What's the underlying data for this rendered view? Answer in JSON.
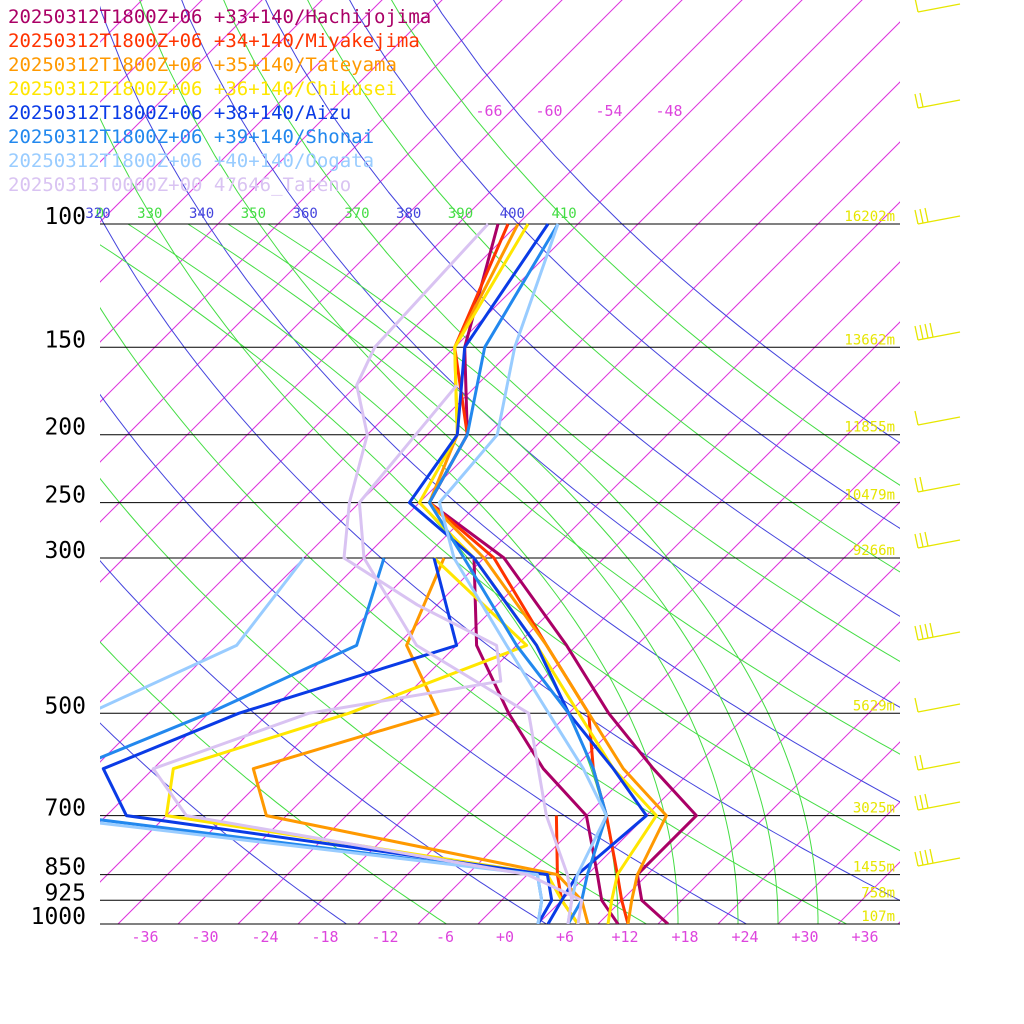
{
  "chart_data": {
    "type": "line",
    "chart_kind": "skew-T log-P sounding diagram",
    "legend_placement": "top-left",
    "grid": true,
    "xaxis": {
      "unit": "degC",
      "tick_labels": [
        "-36",
        "-30",
        "-24",
        "-18",
        "-12",
        "-6",
        "+0",
        "+6",
        "+12",
        "+18",
        "+24",
        "+30",
        "+36"
      ],
      "range": [
        -40,
        40
      ]
    },
    "yaxis": {
      "scale": "log",
      "unit": "hPa",
      "tick_labels": [
        "100",
        "150",
        "200",
        "250",
        "300",
        "500",
        "700",
        "850",
        "925",
        "1000"
      ],
      "range": [
        100,
        1000
      ]
    },
    "upper_temperature_labels": [
      "-66",
      "-60",
      "-54",
      "-48"
    ],
    "theta_labels": [
      "0",
      "320",
      "330",
      "340",
      "350",
      "360",
      "370",
      "380",
      "390",
      "400",
      "410"
    ],
    "height_labels": [
      {
        "p": 100,
        "text": "16202m"
      },
      {
        "p": 150,
        "text": "13662m"
      },
      {
        "p": 200,
        "text": "11855m"
      },
      {
        "p": 250,
        "text": "10479m"
      },
      {
        "p": 300,
        "text": "9266m"
      },
      {
        "p": 500,
        "text": "5629m"
      },
      {
        "p": 700,
        "text": "3025m"
      },
      {
        "p": 850,
        "text": "1455m"
      },
      {
        "p": 925,
        "text": "758m"
      },
      {
        "p": 1000,
        "text": "107m"
      }
    ],
    "series": [
      {
        "name": "20250312T1800Z+06 +33+140/Hachijojima",
        "color": "#aa0066",
        "temperature": [
          [
            100,
            -68
          ],
          [
            150,
            -59
          ],
          [
            200,
            -50
          ],
          [
            250,
            -47
          ],
          [
            300,
            -34
          ],
          [
            400,
            -19
          ],
          [
            500,
            -8
          ],
          [
            600,
            2
          ],
          [
            700,
            11
          ],
          [
            850,
            11
          ],
          [
            925,
            14
          ],
          [
            1000,
            19
          ]
        ],
        "dewpoint": [
          [
            300,
            -37
          ],
          [
            400,
            -28
          ],
          [
            500,
            -18
          ],
          [
            600,
            -9
          ],
          [
            700,
            0
          ],
          [
            850,
            7
          ],
          [
            925,
            10
          ],
          [
            1000,
            14
          ]
        ]
      },
      {
        "name": "20250312T1800Z+06 +34+140/Miyakejima",
        "color": "#ff3300",
        "temperature": [
          [
            100,
            -67
          ],
          [
            150,
            -60
          ],
          [
            200,
            -50
          ],
          [
            250,
            -47
          ],
          [
            300,
            -35
          ],
          [
            400,
            -21
          ],
          [
            500,
            -10
          ],
          [
            600,
            -4
          ],
          [
            700,
            2
          ],
          [
            850,
            9
          ],
          [
            925,
            12
          ],
          [
            1000,
            15
          ]
        ],
        "dewpoint": [
          [
            700,
            -3
          ],
          [
            850,
            3
          ],
          [
            925,
            6
          ],
          [
            1000,
            10
          ]
        ]
      },
      {
        "name": "20250312T1800Z+06 +35+140/Tateyama",
        "color": "#ff9900",
        "temperature": [
          [
            100,
            -66
          ],
          [
            150,
            -60
          ],
          [
            200,
            -51
          ],
          [
            250,
            -47
          ],
          [
            300,
            -36
          ],
          [
            400,
            -21
          ],
          [
            500,
            -10
          ],
          [
            600,
            -1
          ],
          [
            700,
            8
          ],
          [
            850,
            11
          ],
          [
            925,
            13
          ],
          [
            1000,
            15
          ]
        ],
        "dewpoint": [
          [
            300,
            -40
          ],
          [
            400,
            -35
          ],
          [
            500,
            -25
          ],
          [
            600,
            -38
          ],
          [
            700,
            -32
          ],
          [
            850,
            3
          ],
          [
            925,
            8
          ],
          [
            1000,
            11
          ]
        ]
      },
      {
        "name": "20250312T1800Z+06 +36+140/Chikusei",
        "color": "#ffe600",
        "temperature": [
          [
            100,
            -65
          ],
          [
            150,
            -60
          ],
          [
            200,
            -51
          ],
          [
            250,
            -48
          ],
          [
            300,
            -37
          ],
          [
            400,
            -22
          ],
          [
            500,
            -11
          ],
          [
            600,
            -2
          ],
          [
            700,
            7
          ],
          [
            850,
            9
          ],
          [
            925,
            11
          ],
          [
            1000,
            13
          ]
        ],
        "dewpoint": [
          [
            300,
            -41
          ],
          [
            400,
            -23
          ],
          [
            500,
            -34
          ],
          [
            600,
            -46
          ],
          [
            700,
            -42
          ],
          [
            850,
            2
          ],
          [
            925,
            6
          ],
          [
            1000,
            10
          ]
        ]
      },
      {
        "name": "20250312T1800Z+06 +38+140/Aizu",
        "color": "#0a3be6",
        "temperature": [
          [
            100,
            -63
          ],
          [
            150,
            -59
          ],
          [
            200,
            -51
          ],
          [
            250,
            -49
          ],
          [
            300,
            -37
          ],
          [
            400,
            -22
          ],
          [
            500,
            -12
          ],
          [
            600,
            -2
          ],
          [
            700,
            6
          ],
          [
            850,
            5
          ],
          [
            925,
            6
          ],
          [
            1000,
            7
          ]
        ],
        "dewpoint": [
          [
            300,
            -41
          ],
          [
            400,
            -30
          ],
          [
            500,
            -45
          ],
          [
            600,
            -53
          ],
          [
            700,
            -46
          ],
          [
            850,
            2
          ],
          [
            925,
            5
          ],
          [
            1000,
            6
          ]
        ]
      },
      {
        "name": "20250312T1800Z+06 +39+140/Shonai",
        "color": "#2288ee",
        "temperature": [
          [
            100,
            -62
          ],
          [
            150,
            -57
          ],
          [
            200,
            -50
          ],
          [
            250,
            -47
          ],
          [
            300,
            -38
          ],
          [
            400,
            -24
          ],
          [
            500,
            -12
          ],
          [
            600,
            -4
          ],
          [
            700,
            2
          ],
          [
            850,
            6
          ],
          [
            925,
            8
          ],
          [
            1000,
            9
          ]
        ],
        "dewpoint": [
          [
            300,
            -46
          ],
          [
            400,
            -40
          ],
          [
            500,
            -48
          ],
          [
            600,
            -56
          ],
          [
            700,
            -52
          ],
          [
            850,
            1
          ],
          [
            925,
            4
          ],
          [
            1000,
            6
          ]
        ]
      },
      {
        "name": "20250312T1800Z+06 +40+140/Oogata",
        "color": "#99ccff",
        "temperature": [
          [
            100,
            -62
          ],
          [
            150,
            -54
          ],
          [
            200,
            -47
          ],
          [
            250,
            -46
          ],
          [
            300,
            -39
          ],
          [
            400,
            -25
          ],
          [
            500,
            -14
          ],
          [
            600,
            -5
          ],
          [
            700,
            2
          ],
          [
            850,
            5
          ],
          [
            925,
            7
          ],
          [
            1000,
            9
          ]
        ],
        "dewpoint": [
          [
            300,
            -54
          ],
          [
            400,
            -52
          ],
          [
            500,
            -60
          ],
          [
            600,
            -65
          ],
          [
            700,
            -55
          ],
          [
            850,
            1
          ],
          [
            925,
            4
          ],
          [
            1000,
            6
          ]
        ]
      },
      {
        "name": "20250313T0000Z+00 47646_Tateno",
        "color": "#d9c3f2",
        "temperature": [
          [
            100,
            -69
          ],
          [
            150,
            -68
          ],
          [
            170,
            -66
          ],
          [
            200,
            -60
          ],
          [
            250,
            -55
          ],
          [
            300,
            -50
          ],
          [
            350,
            -38
          ],
          [
            400,
            -26
          ],
          [
            450,
            -22
          ],
          [
            500,
            -38
          ],
          [
            600,
            -48
          ],
          [
            700,
            -40
          ],
          [
            850,
            0
          ],
          [
            925,
            8
          ],
          [
            1000,
            10
          ]
        ],
        "dewpoint": [
          [
            170,
            -56
          ],
          [
            250,
            -54
          ],
          [
            300,
            -48
          ],
          [
            400,
            -34
          ],
          [
            500,
            -16
          ],
          [
            700,
            -4
          ],
          [
            850,
            4
          ],
          [
            925,
            7
          ],
          [
            1000,
            9
          ]
        ]
      }
    ]
  }
}
